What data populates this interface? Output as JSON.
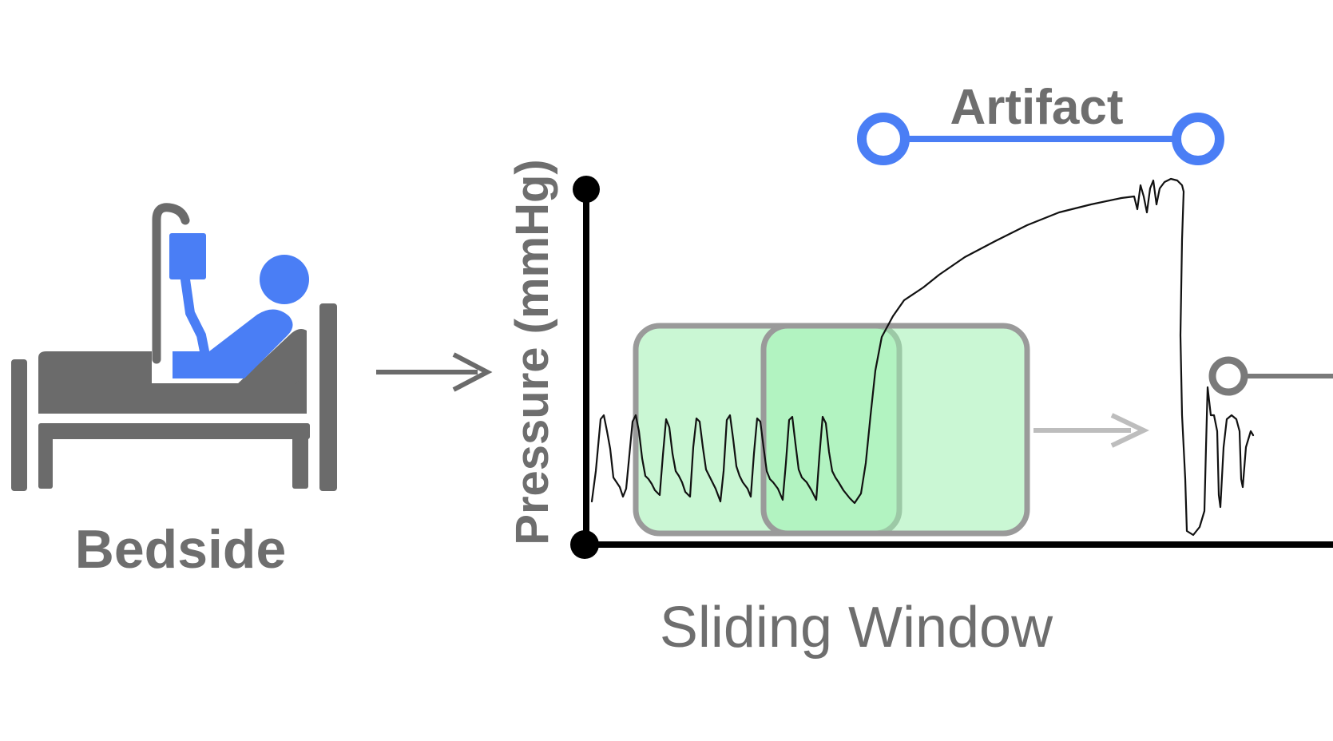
{
  "labels": {
    "bedside": "Bedside",
    "y_axis": "Pressure (mmHg)",
    "artifact": "Artifact",
    "sliding_window": "Sliding Window"
  },
  "icons": [
    "patient-bed-icon",
    "iv-bag-icon",
    "right-arrow-icon"
  ],
  "colors": {
    "accent_blue": "#4a7ef5",
    "bed_gray": "#6b6b6b",
    "label_gray": "#6e6e6e",
    "window_fill": "#9ff0b0",
    "window_border": "#9a9a9a",
    "axis": "#000000"
  }
}
